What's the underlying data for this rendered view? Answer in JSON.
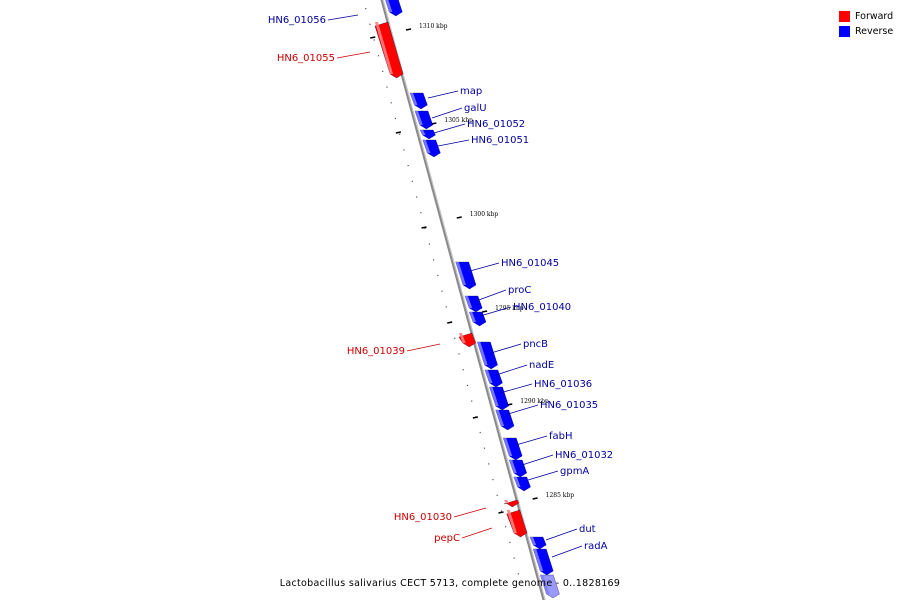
{
  "legend": [
    {
      "label": "Forward",
      "color": "#ff0000"
    },
    {
      "label": "Reverse",
      "color": "#0000ff"
    }
  ],
  "caption": "Lactobacillus salivarius CECT 5713, complete genome - 0..1828169",
  "ruler_labels": [
    "1310 kbp",
    "1305 kbp",
    "1300 kbp",
    "1295 kbp",
    "1290 kbp",
    "1285 kbp"
  ],
  "genes": [
    {
      "name": "HN6_01056",
      "strand": "reverse"
    },
    {
      "name": "HN6_01055",
      "strand": "forward"
    },
    {
      "name": "map",
      "strand": "reverse"
    },
    {
      "name": "galU",
      "strand": "reverse"
    },
    {
      "name": "HN6_01052",
      "strand": "reverse"
    },
    {
      "name": "HN6_01051",
      "strand": "reverse"
    },
    {
      "name": "HN6_01045",
      "strand": "reverse"
    },
    {
      "name": "proC",
      "strand": "reverse"
    },
    {
      "name": "HN6_01040",
      "strand": "reverse"
    },
    {
      "name": "HN6_01039",
      "strand": "forward"
    },
    {
      "name": "pncB",
      "strand": "reverse"
    },
    {
      "name": "nadE",
      "strand": "reverse"
    },
    {
      "name": "HN6_01036",
      "strand": "reverse"
    },
    {
      "name": "HN6_01035",
      "strand": "reverse"
    },
    {
      "name": "fabH",
      "strand": "reverse"
    },
    {
      "name": "HN6_01032",
      "strand": "reverse"
    },
    {
      "name": "gpmA",
      "strand": "reverse"
    },
    {
      "name": "HN6_01030",
      "strand": "forward"
    },
    {
      "name": "pepC",
      "strand": "forward"
    },
    {
      "name": "dut",
      "strand": "reverse"
    },
    {
      "name": "radA",
      "strand": "reverse"
    }
  ],
  "colors": {
    "forward": "#ff0000",
    "reverse": "#0000ff",
    "forward_label": "#cc0000",
    "reverse_label": "#00009e",
    "axis": "#777777"
  }
}
